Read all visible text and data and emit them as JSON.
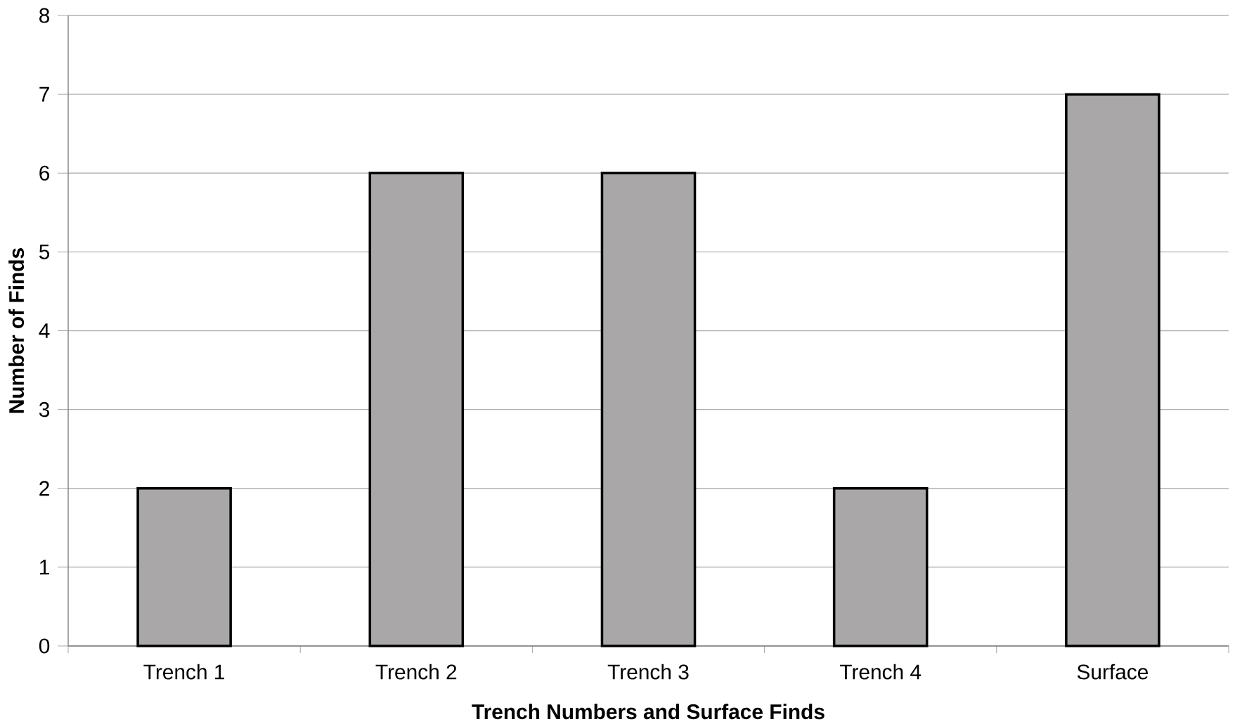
{
  "chart_data": {
    "type": "bar",
    "xlabel": "Trench Numbers and Surface Finds",
    "ylabel": "Number of Finds",
    "categories": [
      "Trench 1",
      "Trench 2",
      "Trench 3",
      "Trench 4",
      "Surface"
    ],
    "values": [
      2,
      6,
      6,
      2,
      7
    ],
    "color": "#a9a7a8",
    "ylim": [
      0,
      8
    ],
    "yticks": [
      0,
      1,
      2,
      3,
      4,
      5,
      6,
      7,
      8
    ],
    "grid": "y"
  }
}
